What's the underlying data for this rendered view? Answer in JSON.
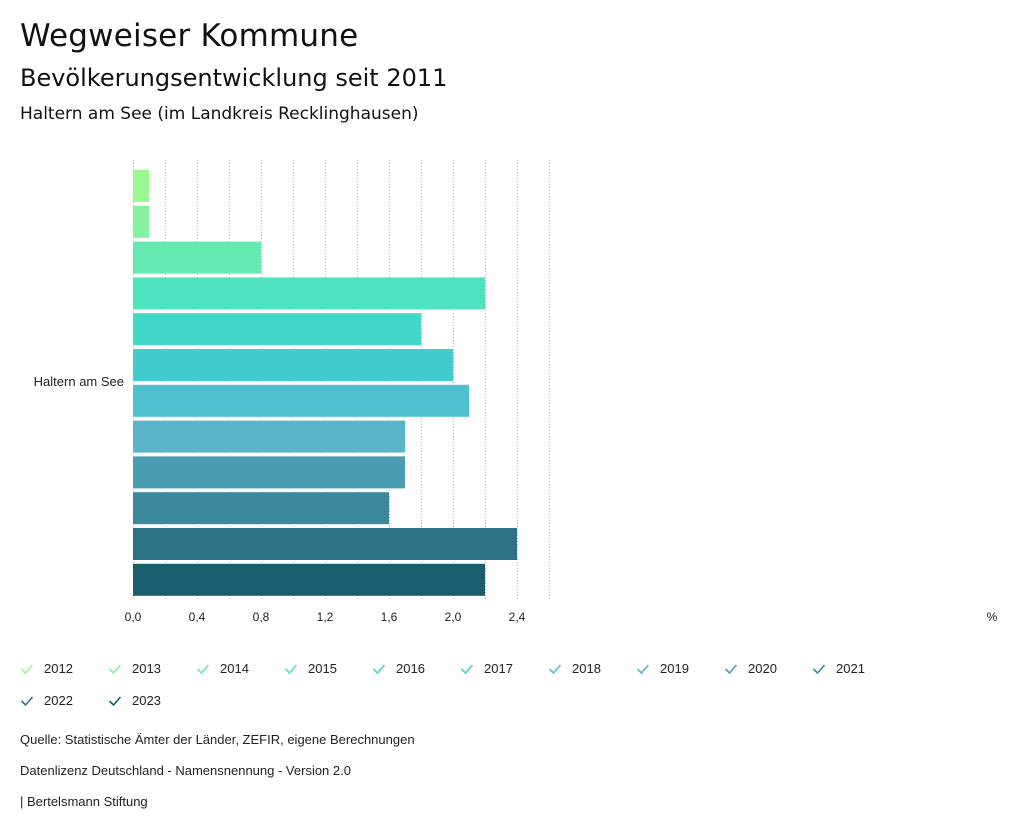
{
  "header": {
    "title": "Wegweiser Kommune",
    "subtitle": "Bevölkerungsentwicklung seit 2011",
    "region": "Haltern am See (im Landkreis Recklinghausen)"
  },
  "chart_data": {
    "type": "bar",
    "orientation": "horizontal",
    "categories": [
      "Haltern am See"
    ],
    "series": [
      {
        "name": "2012",
        "values": [
          0.1
        ],
        "color": "#9bf891"
      },
      {
        "name": "2013",
        "values": [
          0.1
        ],
        "color": "#86f19f"
      },
      {
        "name": "2014",
        "values": [
          0.8
        ],
        "color": "#65e9b1"
      },
      {
        "name": "2015",
        "values": [
          2.2
        ],
        "color": "#4fe2c0"
      },
      {
        "name": "2016",
        "values": [
          1.8
        ],
        "color": "#42d8c7"
      },
      {
        "name": "2017",
        "values": [
          2.0
        ],
        "color": "#42cccf"
      },
      {
        "name": "2018",
        "values": [
          2.1
        ],
        "color": "#4fc0cf"
      },
      {
        "name": "2019",
        "values": [
          1.7
        ],
        "color": "#5ab4c9"
      },
      {
        "name": "2020",
        "values": [
          1.7
        ],
        "color": "#4a9cb3"
      },
      {
        "name": "2021",
        "values": [
          1.6
        ],
        "color": "#3b889c"
      },
      {
        "name": "2022",
        "values": [
          2.4
        ],
        "color": "#2b7385"
      },
      {
        "name": "2023",
        "values": [
          2.2
        ],
        "color": "#195e6d"
      }
    ],
    "xlim": [
      0,
      2.6
    ],
    "xticks": [
      "0,0",
      "0,4",
      "0,8",
      "1,2",
      "1,6",
      "2,0",
      "2,4"
    ],
    "xunit": "%",
    "grid": "vertical dotted",
    "legend_position": "bottom"
  },
  "footer": {
    "source": "Quelle: Statistische Ämter der Länder, ZEFIR, eigene Berechnungen",
    "license": "Datenlizenz Deutschland - Namensnennung - Version 2.0",
    "publisher": "| Bertelsmann Stiftung"
  }
}
